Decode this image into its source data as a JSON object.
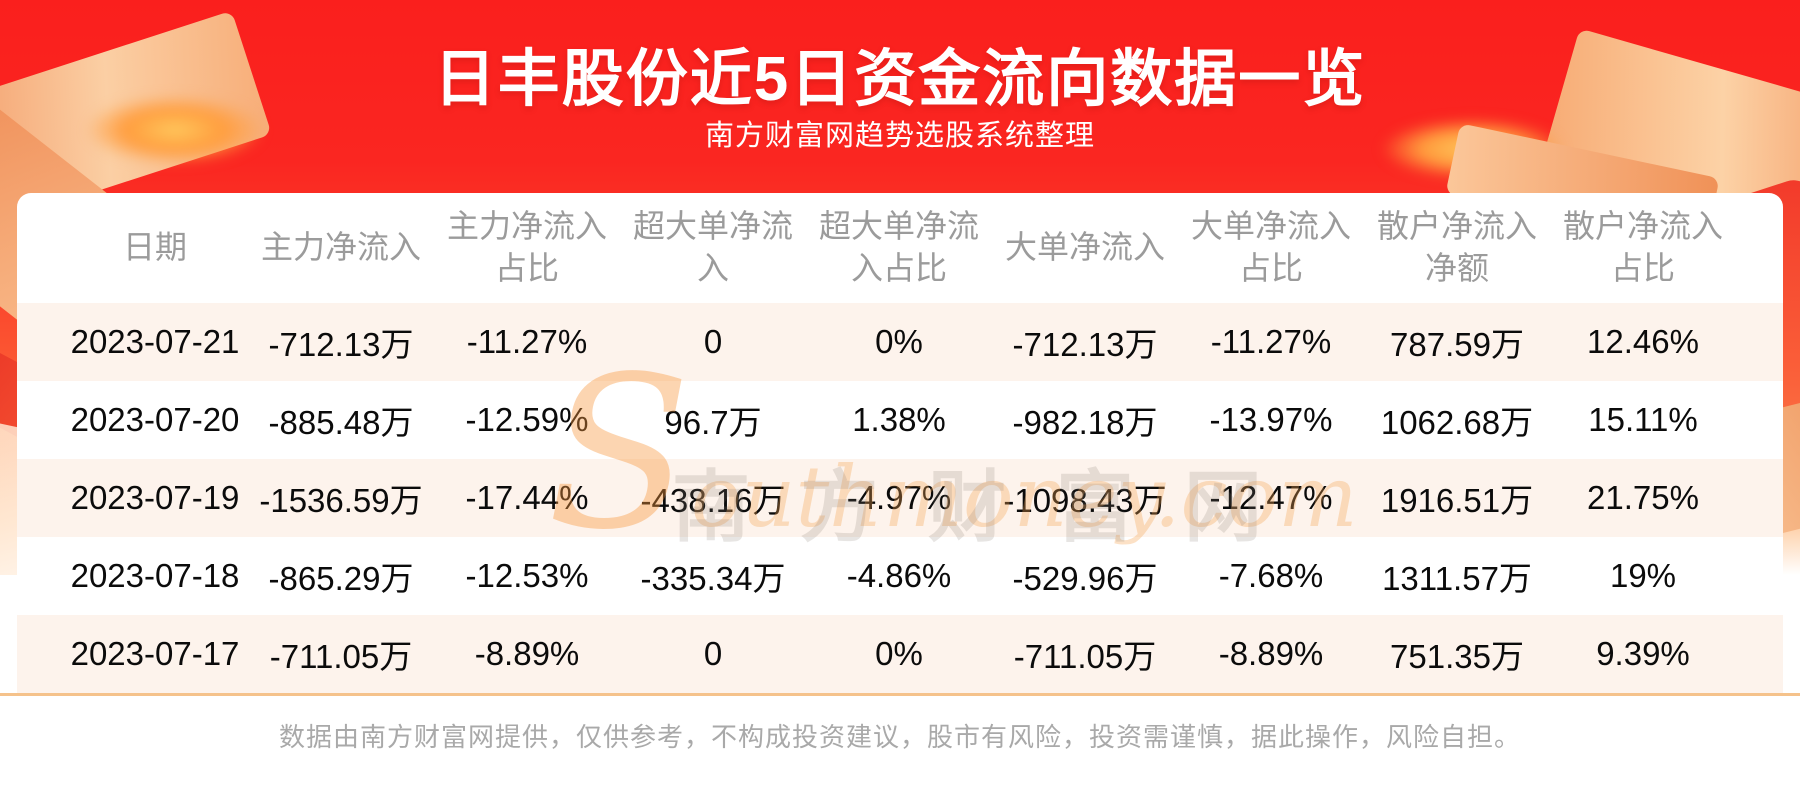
{
  "banner": {
    "title": "日丰股份近5日资金流向数据一览",
    "subtitle": "南方财富网趋势选股系统整理"
  },
  "chart_data": {
    "type": "table",
    "title": "日丰股份近5日资金流向数据一览",
    "subtitle": "南方财富网趋势选股系统整理",
    "columns": [
      "日期",
      "主力净流入",
      "主力净流入占比",
      "超大单净流入",
      "超大单净流入占比",
      "大单净流入",
      "大单净流入占比",
      "散户净流入净额",
      "散户净流入占比"
    ],
    "rows": [
      [
        "2023-07-21",
        "-712.13万",
        "-11.27%",
        "0",
        "0%",
        "-712.13万",
        "-11.27%",
        "787.59万",
        "12.46%"
      ],
      [
        "2023-07-20",
        "-885.48万",
        "-12.59%",
        "96.7万",
        "1.38%",
        "-982.18万",
        "-13.97%",
        "1062.68万",
        "15.11%"
      ],
      [
        "2023-07-19",
        "-1536.59万",
        "-17.44%",
        "-438.16万",
        "-4.97%",
        "-1098.43万",
        "-12.47%",
        "1916.51万",
        "21.75%"
      ],
      [
        "2023-07-18",
        "-865.29万",
        "-12.53%",
        "-335.34万",
        "-4.86%",
        "-529.96万",
        "-7.68%",
        "1311.57万",
        "19%"
      ],
      [
        "2023-07-17",
        "-711.05万",
        "-8.89%",
        "0",
        "0%",
        "-711.05万",
        "-8.89%",
        "751.35万",
        "9.39%"
      ]
    ]
  },
  "watermark": {
    "cn": "南方财富网",
    "en": "Southmoney.com"
  },
  "footer": {
    "disclaimer": "数据由南方财富网提供，仅供参考，不构成投资建议，股市有风险，投资需谨慎，据此操作，风险自担。"
  },
  "colors": {
    "banner_red_top": "#fa1f1d",
    "banner_orange_bottom": "#fd8a55",
    "row_stripe": "#fdf3ec",
    "divider_orange": "#f5c28b",
    "header_text": "#9b9b9b",
    "cell_text": "#0b0b0b",
    "footer_text": "#a9a9a9",
    "watermark_orange": "#f7a352"
  }
}
